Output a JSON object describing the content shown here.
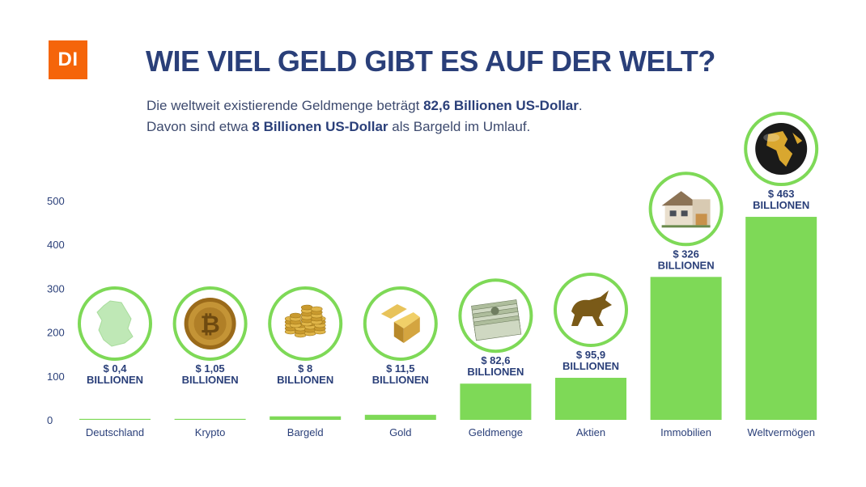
{
  "logo": "DI",
  "title": "WIE VIEL GELD GIBT ES AUF DER WELT?",
  "subtitle": {
    "line1_pre": "Die weltweit existierende Geldmenge beträgt ",
    "line1_bold": "82,6 Billionen US-Dollar",
    "line1_post": ".",
    "line2_pre": "Davon sind etwa ",
    "line2_bold": "8 Billionen US-Dollar",
    "line2_post": " als Bargeld im Umlauf."
  },
  "colors": {
    "bar": "#7ed957",
    "ring": "#7ed957",
    "text": "#2a3f79",
    "logo": "#f5650a"
  },
  "chart_data": {
    "type": "bar",
    "categories": [
      "Deutschland",
      "Krypto",
      "Bargeld",
      "Gold",
      "Geldmenge",
      "Aktien",
      "Immobilien",
      "Weltvermögen"
    ],
    "values": [
      0.4,
      1.05,
      8,
      11.5,
      82.6,
      95.9,
      326,
      463
    ],
    "value_labels": [
      "$ 0,4",
      "$ 1,05",
      "$ 8",
      "$ 11,5",
      "$ 82,6",
      "$ 95,9",
      "$ 326",
      "$ 463"
    ],
    "unit_label": "BILLIONEN",
    "icons": [
      "germany-map-icon",
      "bitcoin-icon",
      "coins-icon",
      "gold-bars-icon",
      "banknotes-icon",
      "bull-icon",
      "house-icon",
      "globe-icon"
    ],
    "yticks": [
      0,
      100,
      200,
      300,
      400,
      500
    ],
    "ylim": [
      0,
      500
    ],
    "grid": false
  }
}
